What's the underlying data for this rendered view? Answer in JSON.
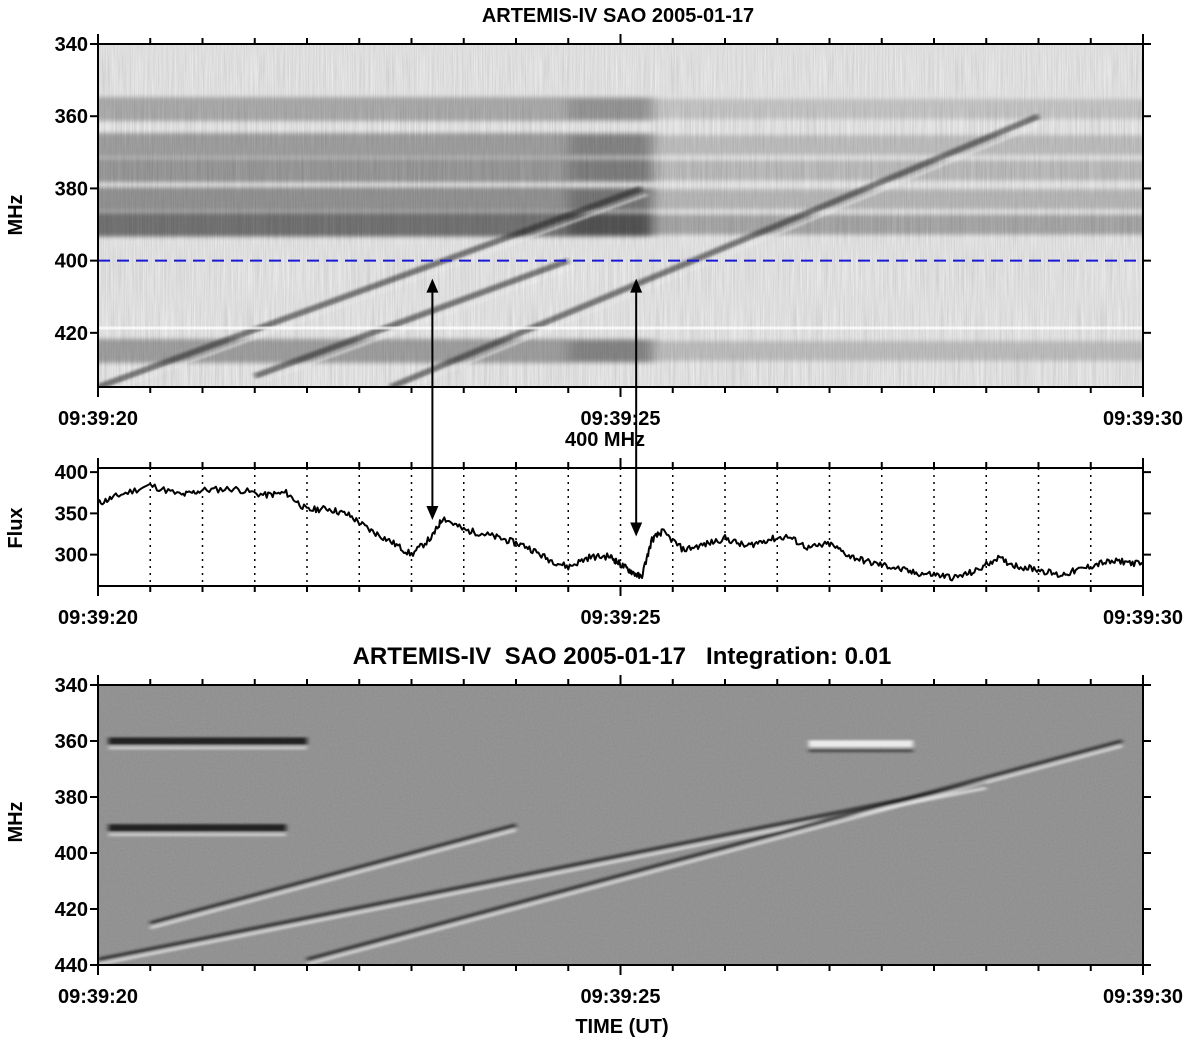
{
  "chart_data": [
    {
      "type": "heatmap",
      "title": "ARTEMIS-IV  SAO 2005-01-17",
      "ylabel": "MHz",
      "ylim": [
        340,
        435
      ],
      "y_inverted": true,
      "yticks": [
        "340",
        "360",
        "380",
        "400",
        "420"
      ],
      "xlim": [
        "09:39:20",
        "09:39:30"
      ],
      "xticks": [
        "09:39:20",
        "09:39:25",
        "09:39:30"
      ],
      "colormap": "grayscale (darker = stronger emission)",
      "reference_line": {
        "y": 400,
        "style": "dashed",
        "color": "#1a1ad6"
      },
      "emission_bands_mhz": [
        {
          "center": 358,
          "strength": 0.45
        },
        {
          "center": 368,
          "strength": 0.55
        },
        {
          "center": 375,
          "strength": 0.6
        },
        {
          "center": 383,
          "strength": 0.65
        },
        {
          "center": 390,
          "strength": 0.9
        },
        {
          "center": 425,
          "strength": 0.55
        }
      ],
      "drifting_bursts": [
        {
          "t_start": 0.0,
          "f_start": 435,
          "t_end": 5.2,
          "f_end": 380
        },
        {
          "t_start": 2.8,
          "f_start": 435,
          "t_end": 9.0,
          "f_end": 360
        },
        {
          "t_start": 1.5,
          "f_start": 432,
          "t_end": 4.5,
          "f_end": 400
        }
      ],
      "annotations": [
        {
          "type": "double-arrow",
          "t": 3.2
        },
        {
          "type": "double-arrow",
          "t": 5.15
        }
      ]
    },
    {
      "type": "line",
      "title": "400 MHz",
      "ylabel": "Flux",
      "ylim": [
        262,
        405
      ],
      "yticks": [
        "300",
        "350",
        "400"
      ],
      "xlim": [
        "09:39:20",
        "09:39:30"
      ],
      "xticks": [
        "09:39:20",
        "09:39:25",
        "09:39:30"
      ],
      "grid": "vertical dotted every 0.5 s",
      "series": [
        {
          "x": [
            0.0,
            0.2,
            0.5,
            0.8,
            1.0,
            1.3,
            1.6,
            1.8,
            2.0,
            2.2,
            2.4,
            2.6,
            2.8,
            3.0,
            3.2,
            3.3,
            3.5,
            3.7,
            3.9,
            4.1,
            4.3,
            4.5,
            4.7,
            4.9,
            5.0,
            5.1,
            5.2,
            5.3,
            5.4,
            5.6,
            5.8,
            6.0,
            6.2,
            6.4,
            6.6,
            6.8,
            7.0,
            7.2,
            7.4,
            7.6,
            7.8,
            8.0,
            8.2,
            8.4,
            8.6,
            8.8,
            9.0,
            9.2,
            9.4,
            9.6,
            9.8,
            10.0
          ],
          "y": [
            362,
            372,
            384,
            372,
            378,
            380,
            372,
            375,
            354,
            356,
            348,
            330,
            316,
            300,
            322,
            345,
            330,
            325,
            318,
            310,
            295,
            285,
            297,
            298,
            288,
            280,
            272,
            318,
            328,
            306,
            312,
            320,
            310,
            318,
            322,
            308,
            313,
            298,
            290,
            285,
            278,
            276,
            272,
            280,
            296,
            286,
            282,
            275,
            282,
            290,
            292,
            288
          ]
        }
      ],
      "annotations": [
        {
          "type": "double-arrow",
          "t": 3.2
        },
        {
          "type": "double-arrow",
          "t": 5.15
        }
      ]
    },
    {
      "type": "heatmap",
      "title": "ARTEMIS-IV  SAO 2005-01-17   Integration: 0.01",
      "ylabel": "MHz",
      "xlabel": "TIME (UT)",
      "ylim": [
        340,
        440
      ],
      "y_inverted": true,
      "yticks": [
        "340",
        "360",
        "380",
        "400",
        "420",
        "440"
      ],
      "xlim": [
        "09:39:20",
        "09:39:30"
      ],
      "xticks": [
        "09:39:20",
        "09:39:25",
        "09:39:30"
      ],
      "colormap": "grayscale, high-pass filtered (mid-gray background)",
      "features": [
        {
          "kind": "dark-band",
          "t_start": 0.1,
          "t_end": 2.0,
          "f": 360
        },
        {
          "kind": "dark-band",
          "t_start": 0.1,
          "t_end": 1.8,
          "f": 391
        },
        {
          "kind": "bright-streak",
          "t_start": 6.8,
          "t_end": 7.8,
          "f": 361
        },
        {
          "kind": "drift",
          "t_start": 0.0,
          "f_start": 438,
          "t_end": 8.5,
          "f_end": 375
        },
        {
          "kind": "drift",
          "t_start": 2.0,
          "f_start": 438,
          "t_end": 9.8,
          "f_end": 360
        },
        {
          "kind": "drift",
          "t_start": 0.5,
          "f_start": 425,
          "t_end": 4.0,
          "f_end": 390
        }
      ]
    }
  ]
}
